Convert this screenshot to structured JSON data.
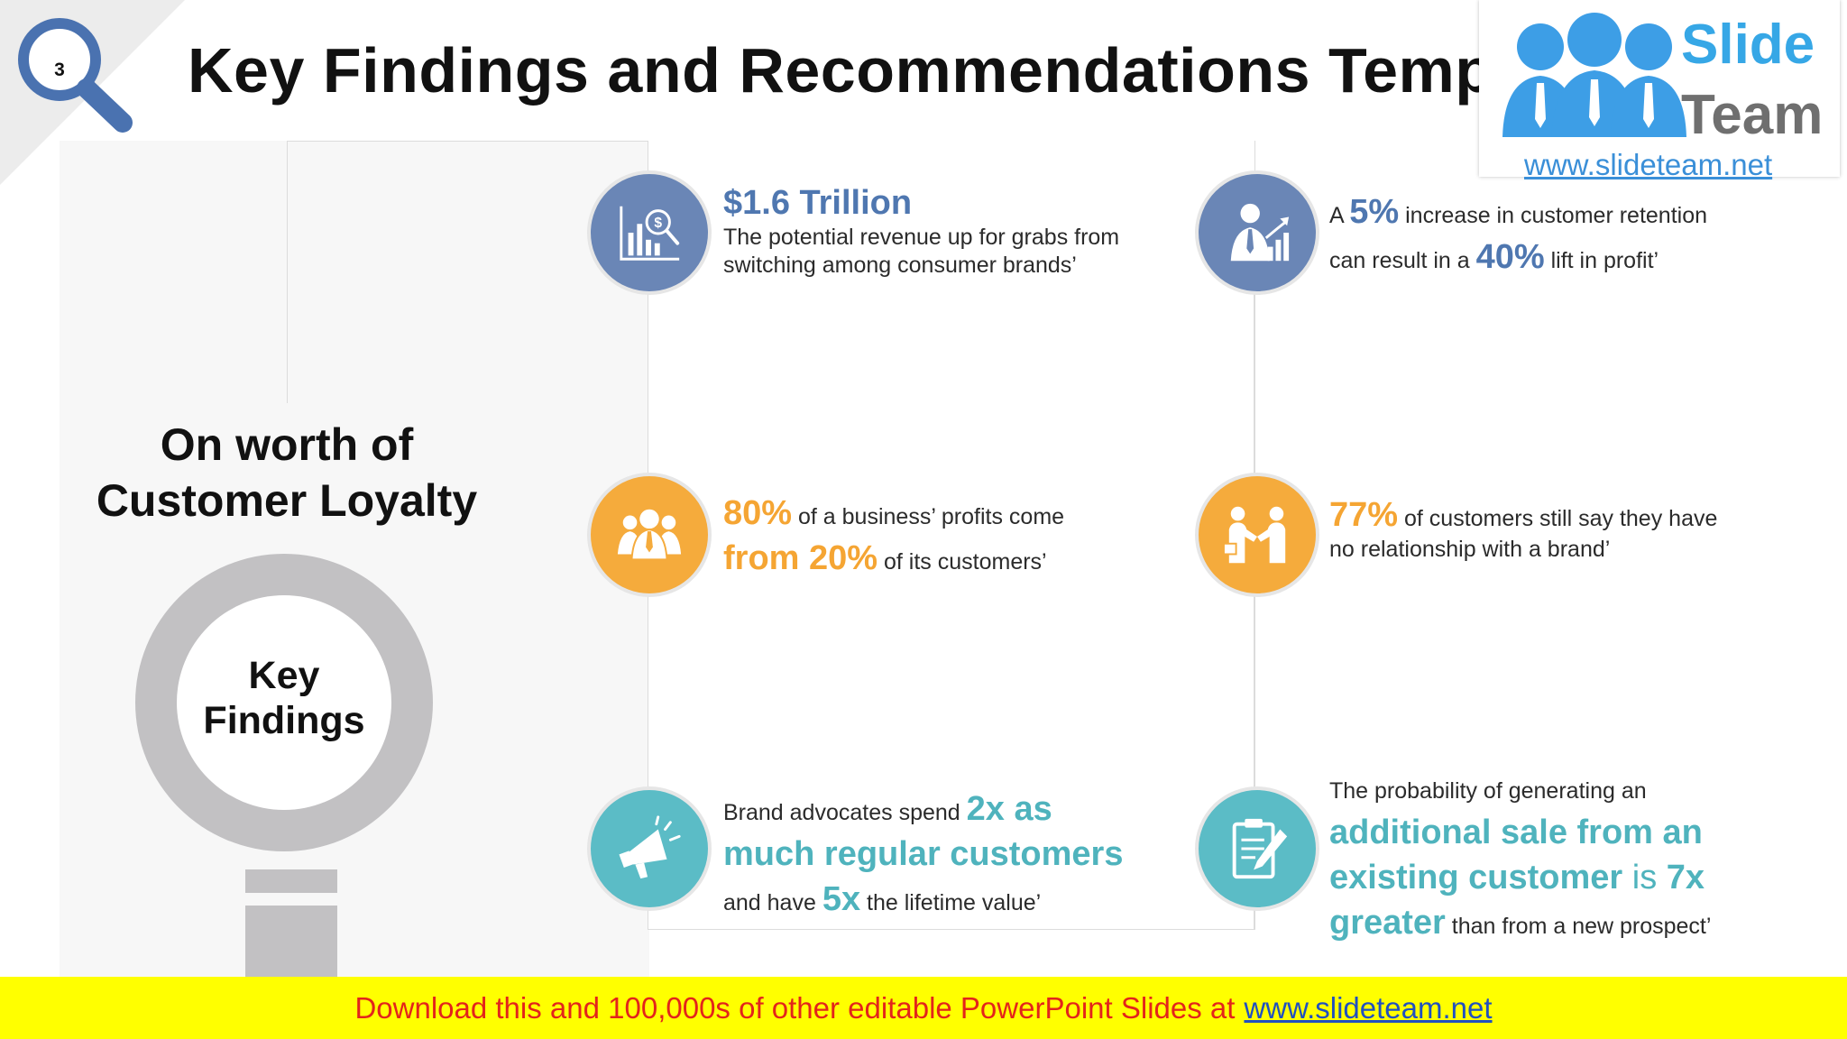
{
  "slide": {
    "page_number": "3",
    "title": "Key Findings and Recommendations Template"
  },
  "logo": {
    "word1": "Slide",
    "word2": "Team",
    "url": "www.slideteam.net"
  },
  "left_panel": {
    "heading_line1": "On worth of",
    "heading_line2": "Customer Loyalty",
    "lens_line1": "Key",
    "lens_line2": "Findings"
  },
  "findings": {
    "f1": {
      "icon": "revenue-chart-icon",
      "headline": "$1.6 Trillion",
      "body": "The potential revenue up for grabs from switching among consumer brands’"
    },
    "f2": {
      "icon": "businessman-growth-icon",
      "p1": "A ",
      "n1": "5%",
      "p2": " increase in customer retention",
      "p3": "can result in a ",
      "n2": "40%",
      "p4": " lift in profit’"
    },
    "f3": {
      "icon": "team-icon",
      "n1": "80%",
      "p1": " of a business’ profits come",
      "n2": "from 20%",
      "p2": " of its customers’"
    },
    "f4": {
      "icon": "handshake-icon",
      "n1": "77%",
      "p1": " of customers still say they have",
      "p2": "no relationship with a brand’"
    },
    "f5": {
      "icon": "megaphone-icon",
      "p1": "Brand advocates spend ",
      "n1": "2x as",
      "n2": "much regular customers",
      "p2": "and have ",
      "n3": "5x",
      "p3": " the lifetime value’"
    },
    "f6": {
      "icon": "clipboard-icon",
      "p1": "The probability of generating an",
      "n1": "additional sale from an",
      "n2": "existing customer",
      "p2": " is ",
      "n3": "7x",
      "n4": "greater",
      "p3": " than from a new prospect’"
    }
  },
  "footer": {
    "text": "Download this and 100,000s of other editable PowerPoint Slides at",
    "link": "www.slideteam.net"
  },
  "colors": {
    "blue": "#6a86b6",
    "orange": "#f5ab3c",
    "teal": "#5bbcc6",
    "footer_bg": "#ffff00",
    "footer_text": "#e3241b"
  }
}
